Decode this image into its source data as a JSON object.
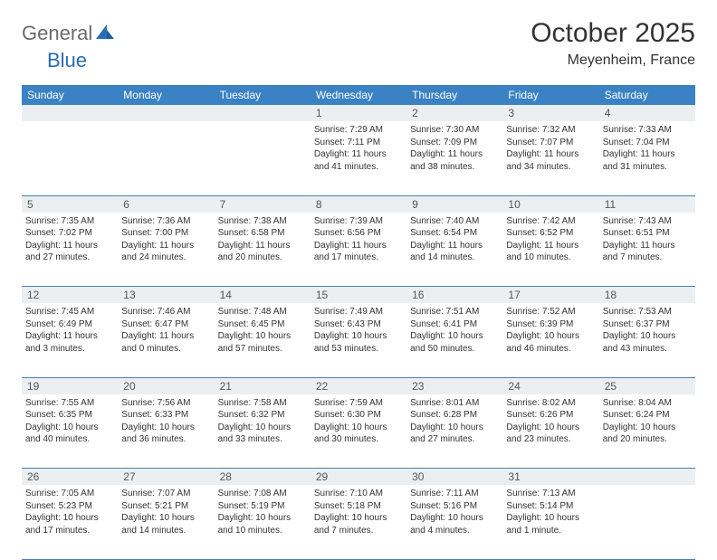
{
  "logo": {
    "general": "General",
    "blue": "Blue"
  },
  "title": "October 2025",
  "location": "Meyenheim, France",
  "colors": {
    "header_bg": "#3b82c4",
    "header_text": "#ffffff",
    "daynum_bg": "#eceff1",
    "border": "#4a7fb5",
    "logo_gray": "#6b6b6b",
    "logo_blue": "#2a6db5"
  },
  "weekdays": [
    "Sunday",
    "Monday",
    "Tuesday",
    "Wednesday",
    "Thursday",
    "Friday",
    "Saturday"
  ],
  "weeks": [
    [
      null,
      null,
      null,
      {
        "n": "1",
        "sr": "Sunrise: 7:29 AM",
        "ss": "Sunset: 7:11 PM",
        "dl": "Daylight: 11 hours and 41 minutes."
      },
      {
        "n": "2",
        "sr": "Sunrise: 7:30 AM",
        "ss": "Sunset: 7:09 PM",
        "dl": "Daylight: 11 hours and 38 minutes."
      },
      {
        "n": "3",
        "sr": "Sunrise: 7:32 AM",
        "ss": "Sunset: 7:07 PM",
        "dl": "Daylight: 11 hours and 34 minutes."
      },
      {
        "n": "4",
        "sr": "Sunrise: 7:33 AM",
        "ss": "Sunset: 7:04 PM",
        "dl": "Daylight: 11 hours and 31 minutes."
      }
    ],
    [
      {
        "n": "5",
        "sr": "Sunrise: 7:35 AM",
        "ss": "Sunset: 7:02 PM",
        "dl": "Daylight: 11 hours and 27 minutes."
      },
      {
        "n": "6",
        "sr": "Sunrise: 7:36 AM",
        "ss": "Sunset: 7:00 PM",
        "dl": "Daylight: 11 hours and 24 minutes."
      },
      {
        "n": "7",
        "sr": "Sunrise: 7:38 AM",
        "ss": "Sunset: 6:58 PM",
        "dl": "Daylight: 11 hours and 20 minutes."
      },
      {
        "n": "8",
        "sr": "Sunrise: 7:39 AM",
        "ss": "Sunset: 6:56 PM",
        "dl": "Daylight: 11 hours and 17 minutes."
      },
      {
        "n": "9",
        "sr": "Sunrise: 7:40 AM",
        "ss": "Sunset: 6:54 PM",
        "dl": "Daylight: 11 hours and 14 minutes."
      },
      {
        "n": "10",
        "sr": "Sunrise: 7:42 AM",
        "ss": "Sunset: 6:52 PM",
        "dl": "Daylight: 11 hours and 10 minutes."
      },
      {
        "n": "11",
        "sr": "Sunrise: 7:43 AM",
        "ss": "Sunset: 6:51 PM",
        "dl": "Daylight: 11 hours and 7 minutes."
      }
    ],
    [
      {
        "n": "12",
        "sr": "Sunrise: 7:45 AM",
        "ss": "Sunset: 6:49 PM",
        "dl": "Daylight: 11 hours and 3 minutes."
      },
      {
        "n": "13",
        "sr": "Sunrise: 7:46 AM",
        "ss": "Sunset: 6:47 PM",
        "dl": "Daylight: 11 hours and 0 minutes."
      },
      {
        "n": "14",
        "sr": "Sunrise: 7:48 AM",
        "ss": "Sunset: 6:45 PM",
        "dl": "Daylight: 10 hours and 57 minutes."
      },
      {
        "n": "15",
        "sr": "Sunrise: 7:49 AM",
        "ss": "Sunset: 6:43 PM",
        "dl": "Daylight: 10 hours and 53 minutes."
      },
      {
        "n": "16",
        "sr": "Sunrise: 7:51 AM",
        "ss": "Sunset: 6:41 PM",
        "dl": "Daylight: 10 hours and 50 minutes."
      },
      {
        "n": "17",
        "sr": "Sunrise: 7:52 AM",
        "ss": "Sunset: 6:39 PM",
        "dl": "Daylight: 10 hours and 46 minutes."
      },
      {
        "n": "18",
        "sr": "Sunrise: 7:53 AM",
        "ss": "Sunset: 6:37 PM",
        "dl": "Daylight: 10 hours and 43 minutes."
      }
    ],
    [
      {
        "n": "19",
        "sr": "Sunrise: 7:55 AM",
        "ss": "Sunset: 6:35 PM",
        "dl": "Daylight: 10 hours and 40 minutes."
      },
      {
        "n": "20",
        "sr": "Sunrise: 7:56 AM",
        "ss": "Sunset: 6:33 PM",
        "dl": "Daylight: 10 hours and 36 minutes."
      },
      {
        "n": "21",
        "sr": "Sunrise: 7:58 AM",
        "ss": "Sunset: 6:32 PM",
        "dl": "Daylight: 10 hours and 33 minutes."
      },
      {
        "n": "22",
        "sr": "Sunrise: 7:59 AM",
        "ss": "Sunset: 6:30 PM",
        "dl": "Daylight: 10 hours and 30 minutes."
      },
      {
        "n": "23",
        "sr": "Sunrise: 8:01 AM",
        "ss": "Sunset: 6:28 PM",
        "dl": "Daylight: 10 hours and 27 minutes."
      },
      {
        "n": "24",
        "sr": "Sunrise: 8:02 AM",
        "ss": "Sunset: 6:26 PM",
        "dl": "Daylight: 10 hours and 23 minutes."
      },
      {
        "n": "25",
        "sr": "Sunrise: 8:04 AM",
        "ss": "Sunset: 6:24 PM",
        "dl": "Daylight: 10 hours and 20 minutes."
      }
    ],
    [
      {
        "n": "26",
        "sr": "Sunrise: 7:05 AM",
        "ss": "Sunset: 5:23 PM",
        "dl": "Daylight: 10 hours and 17 minutes."
      },
      {
        "n": "27",
        "sr": "Sunrise: 7:07 AM",
        "ss": "Sunset: 5:21 PM",
        "dl": "Daylight: 10 hours and 14 minutes."
      },
      {
        "n": "28",
        "sr": "Sunrise: 7:08 AM",
        "ss": "Sunset: 5:19 PM",
        "dl": "Daylight: 10 hours and 10 minutes."
      },
      {
        "n": "29",
        "sr": "Sunrise: 7:10 AM",
        "ss": "Sunset: 5:18 PM",
        "dl": "Daylight: 10 hours and 7 minutes."
      },
      {
        "n": "30",
        "sr": "Sunrise: 7:11 AM",
        "ss": "Sunset: 5:16 PM",
        "dl": "Daylight: 10 hours and 4 minutes."
      },
      {
        "n": "31",
        "sr": "Sunrise: 7:13 AM",
        "ss": "Sunset: 5:14 PM",
        "dl": "Daylight: 10 hours and 1 minute."
      },
      null
    ]
  ]
}
